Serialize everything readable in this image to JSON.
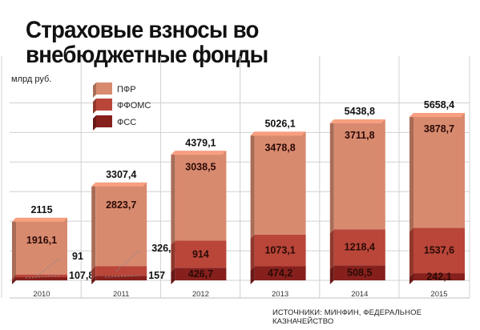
{
  "header": {
    "title": "Страховые взносы во внебюджетные фонды",
    "unit": "млрд руб.",
    "source": "ИСТОЧНИКИ: МИНФИН, ФЕДЕРАЛЬНОЕ КАЗНАЧЕЙСТВО"
  },
  "colors": {
    "pfr": "#d88a6f",
    "ffoms": "#b94639",
    "fss": "#86201d",
    "background": "#ffffff"
  },
  "chart_data": {
    "type": "bar",
    "stacked": true,
    "categories": [
      "2010",
      "2011",
      "2012",
      "2013",
      "2014",
      "2015"
    ],
    "series": [
      {
        "name": "ФСС",
        "values": [
          107.8,
          157,
          426.7,
          474.2,
          508.5,
          242.1
        ],
        "labels": [
          "107,8",
          "157",
          "426,7",
          "474,2",
          "508,5",
          "242,1"
        ]
      },
      {
        "name": "ФФОМС",
        "values": [
          91,
          326.6,
          914,
          1073.1,
          1218.4,
          1537.6
        ],
        "labels": [
          "91",
          "326,6",
          "914",
          "1073,1",
          "1218,4",
          "1537,6"
        ]
      },
      {
        "name": "ПФР",
        "values": [
          1916.1,
          2823.7,
          3038.5,
          3478.8,
          3711.8,
          3878.7
        ],
        "labels": [
          "1916,1",
          "2823,7",
          "3038,5",
          "3478,8",
          "3711,8",
          "3878,7"
        ]
      }
    ],
    "totals": [
      2115,
      3307.4,
      4379.1,
      5026.1,
      5438.8,
      5658.4
    ],
    "total_labels": [
      "2115",
      "3307,4",
      "4379,1",
      "5026,1",
      "5438,8",
      "5658,4"
    ],
    "legend": [
      "ПФР",
      "ФФОМС",
      "ФСС"
    ],
    "legend_position": "top-left",
    "ylabel": "млрд руб.",
    "xlabel": "",
    "grid": true
  }
}
